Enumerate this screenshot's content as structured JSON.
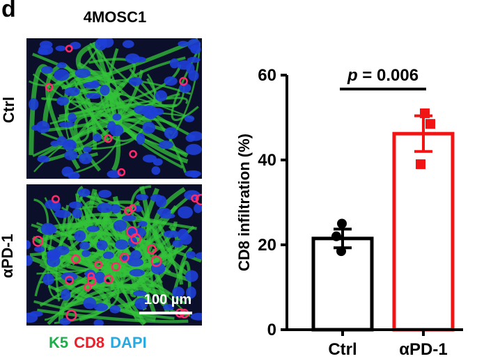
{
  "panel_label": "d",
  "cell_line": "4MOSC1",
  "row_labels": [
    "Ctrl",
    "αPD-1"
  ],
  "scale_bar_label": "100 µm",
  "stain_legend": [
    {
      "label": "K5",
      "color": "#1fae4b"
    },
    {
      "label": "CD8",
      "color": "#e8202a"
    },
    {
      "label": "DAPI",
      "color": "#29a9e1"
    }
  ],
  "chart_data": {
    "type": "bar",
    "categories": [
      "Ctrl",
      "αPD-1"
    ],
    "values": [
      21.5,
      46.2
    ],
    "error": [
      2.2,
      4.2
    ],
    "points": [
      [
        25,
        22,
        18.5
      ],
      [
        51,
        48.5,
        39
      ]
    ],
    "bar_colors": [
      "#000000",
      "#f01414"
    ],
    "ylabel": "CD8 infiltration (%)",
    "yticks": [
      0,
      20,
      40,
      60
    ],
    "ylim": [
      0,
      60
    ],
    "annotation": {
      "p_symbol": "p",
      "p_text": " = 0.006"
    }
  }
}
